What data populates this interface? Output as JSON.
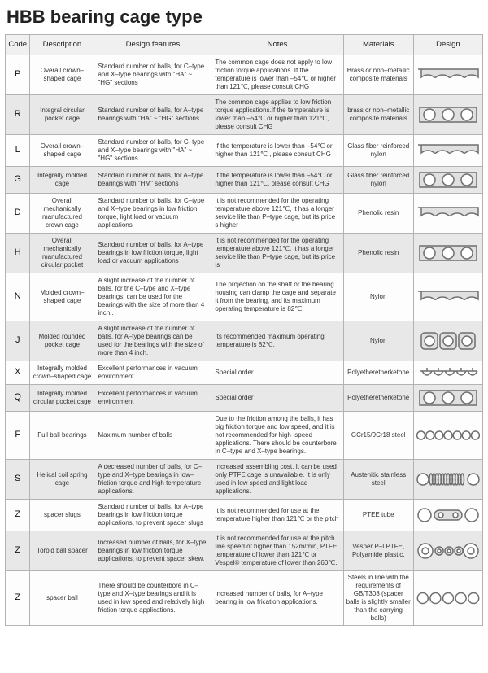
{
  "title": "HBB bearing cage type",
  "headers": [
    "Code",
    "Description",
    "Design features",
    "Notes",
    "Materials",
    "Design"
  ],
  "colors": {
    "svg_stroke": "#6e6e6e",
    "svg_fill_rect": "#e0e0e0",
    "svg_fill_circle": "#ffffff"
  },
  "rows": [
    {
      "code": "P",
      "desc": "Overall crown–shaped cage",
      "feat": "Standard number of balls, for C–type and X–type bearings with\n\"HA\" ~ \"HG\"  sections",
      "notes": "The common cage does not apply to low friction torque applications. If the temperature is lower than –54℃ or higher than 121℃, please consult CHG",
      "mat": "Brass or non–metallic composite materials",
      "design": "crown",
      "alt": false
    },
    {
      "code": "R",
      "desc": "Integral circular pocket cage",
      "feat": "Standard number of balls, for A–type bearings with  \"HA\" ~ \"HG\"   sections",
      "notes": "The common cage applies to low friction torque applications.If the temperature is lower than –54℃ or higher than 121℃, please consult CHG",
      "mat": "brass or non–metallic composite materials",
      "design": "rect3",
      "alt": true
    },
    {
      "code": "L",
      "desc": "Overall crown–shaped cage",
      "feat": "Standard number of balls, for C–type and X–type bearings with\n\"HA\" ~ \"HG\"  sections",
      "notes": "If the temperature is lower than –54℃ or higher than 121℃ , please consult CHG",
      "mat": "Glass fiber reinforced nylon",
      "design": "crown",
      "alt": false
    },
    {
      "code": "G",
      "desc": "Integrally molded cage",
      "feat": "Standard number of balls, for A–type bearings with   \"HM\"  sections",
      "notes": "If the temperature is lower than –54℃ or higher than 121℃, please consult CHG",
      "mat": "Glass fiber reinforced nylon",
      "design": "rect3",
      "alt": true
    },
    {
      "code": "D",
      "desc": "Overall mechanically manufactured crown cage",
      "feat": "Standard number of balls, for C–type and X–type bearings in low friction torque, light load or vacuum applications",
      "notes": "It is not recommended for the operating temperature above 121℃, it has a longer service life than P–type cage, but its price s higher",
      "mat": "Phenolic resin",
      "design": "crown",
      "alt": false
    },
    {
      "code": "H",
      "desc": "Overall mechanically manufactured circular pocket",
      "feat": "Standard number of balls, for A–type bearings in low friction torque, light load or vacuum applications",
      "notes": "It is not recommended for the operating temperature above 121℃, it has a longer service life than P–type cage, but its price is",
      "mat": "Phenolic resin",
      "design": "rect3",
      "alt": true
    },
    {
      "code": "N",
      "desc": "Molded crown–shaped cage",
      "feat": "A slight increase of the number of balls, for the C–type and X–type bearings, can be used for the bearings with the size of more than 4 inch..",
      "notes": "The projection on the shaft or the bearing housing can clamp the cage and separate it from the bearing, and its maximum operating temperature is 82℃.",
      "mat": "Nylon",
      "design": "crown",
      "alt": false
    },
    {
      "code": "J",
      "desc": "Molded rounded pocket cage",
      "feat": "A slight increase of the number of balls, for A–type bearings can be used for the bearings with the size of more than 4 inch.",
      "notes": "Its recommended maximum operating temperature is 82℃.",
      "mat": "Nylon",
      "design": "rounded3",
      "alt": true
    },
    {
      "code": "X",
      "desc": "Integrally molded crown–shaped cage",
      "feat": "Excellent performances in vacuum environment",
      "notes": "Special order",
      "mat": "Polyetheretherketone",
      "design": "crown-small",
      "alt": false
    },
    {
      "code": "Q",
      "desc": "Integrally molded circular pocket cage",
      "feat": "Excellent performances in vacuum environment",
      "notes": "Special order",
      "mat": "Polyetheretherketone",
      "design": "rect3",
      "alt": true
    },
    {
      "code": "F",
      "desc": "Full ball bearings",
      "feat": "Maximum number of balls",
      "notes": "Due to the friction among the balls, it has big friction torque and low speed, and it is not recommended for high–speed applications. There should be counterbore in C–type and X–type bearings.",
      "mat": "GCr15/9Cr18 steel",
      "design": "balls7",
      "alt": false
    },
    {
      "code": "S",
      "desc": "Helical coil spring cage",
      "feat": "A decreased number of balls, for C–type and X–type bearings in low–friction torque and high temperature applications.",
      "notes": "Increased assembling cost. It can be used only PTFE cage is unavailable. It is only used in low speed and light load applications.",
      "mat": "Austenitic stainless steel",
      "design": "spring",
      "alt": true
    },
    {
      "code": "Z",
      "desc": "spacer slugs",
      "feat": "Standard number of balls, for A–type bearings in low friction torque applications, to prevent spacer slugs",
      "notes": "It is not recommended for use at the temperature higher than 121℃ or the pitch",
      "mat": "PTEE tube",
      "design": "slugs",
      "alt": false
    },
    {
      "code": "Z",
      "desc": "Toroid ball spacer",
      "feat": "Increased number of balls, for X–type bearings in low friction torque applications, to prevent spacer skew.",
      "notes": "It is not recommended for use at the pitch line speed of higher than 152m/min, PTFE temperature of lower than 121℃ or Vespel® temperature of lower than 260℃.",
      "mat": "Vesper P–I PTFE, Polyamide plastic.",
      "design": "toroid",
      "alt": true
    },
    {
      "code": "Z",
      "desc": "spacer ball",
      "feat": "There should be counterbore in C–type and X–type bearings and it is used in low speed and relatively high friction torque applications.",
      "notes": "Increased number of balls, for A–type bearing in low frication applications.",
      "mat": "Steels in line with the requirements of GB/T308 (spacer balls is slightly smaller than the carrying balls)",
      "design": "balls5",
      "alt": false
    }
  ]
}
